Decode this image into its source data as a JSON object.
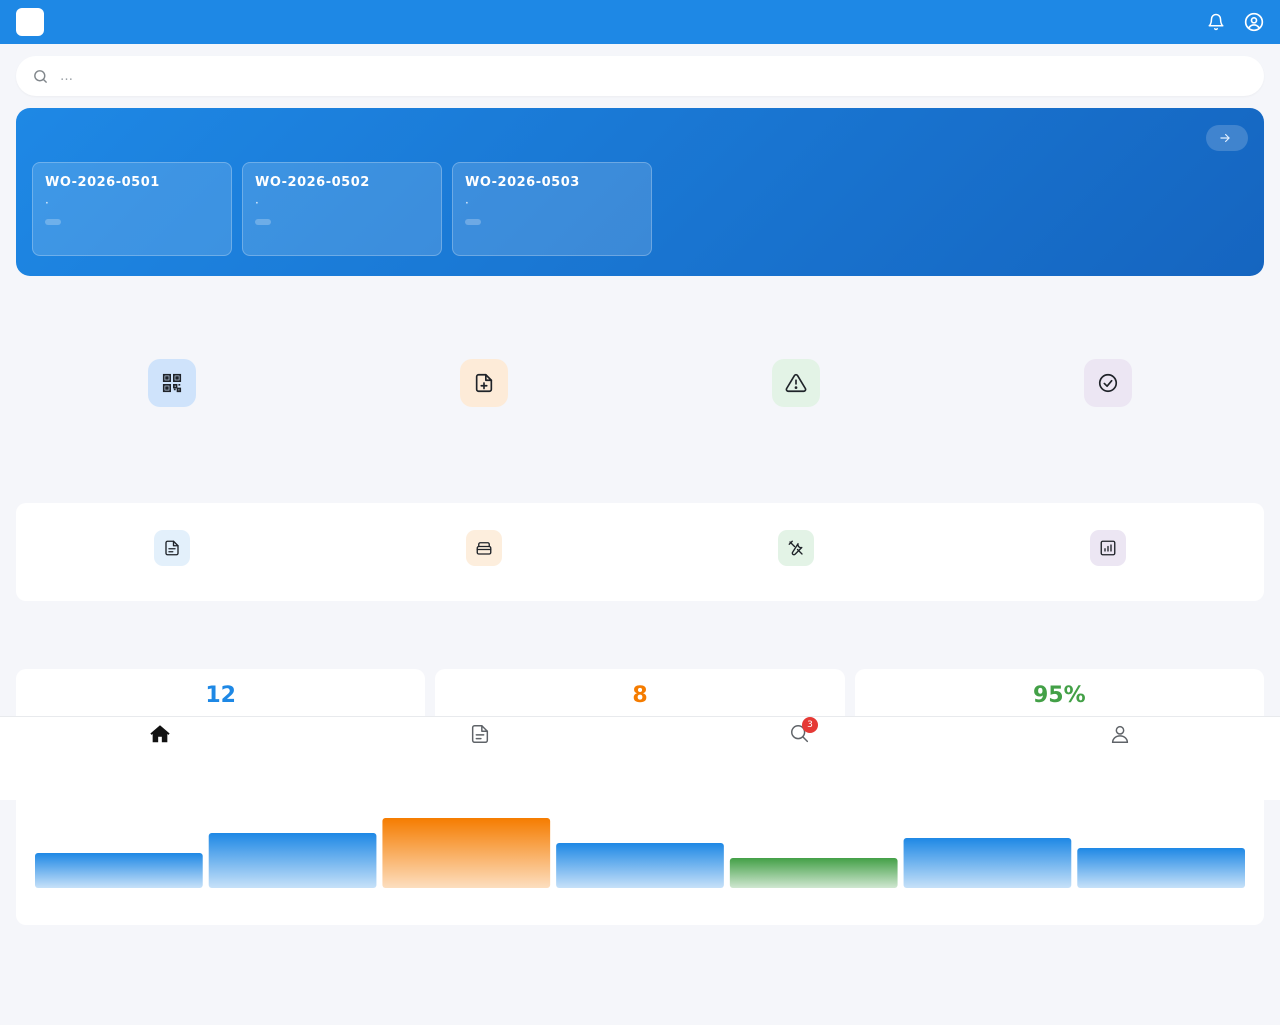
{
  "header": {
    "logo_glyph": "",
    "title": "",
    "icons": [
      "bell-icon",
      "user-circle-icon"
    ]
  },
  "search": {
    "placeholder": "…"
  },
  "banner": {
    "title": "",
    "more_label": "",
    "work_orders": [
      {
        "id": "WO-2026-0501",
        "desc": " · ",
        "status": ""
      },
      {
        "id": "WO-2026-0502",
        "desc": " · ",
        "status": ""
      },
      {
        "id": "WO-2026-0503",
        "desc": " · ",
        "status": ""
      }
    ]
  },
  "quick_section": {
    "title": "",
    "items": [
      {
        "label": "",
        "icon": "qr-code-icon",
        "bg": "#cfe3fb"
      },
      {
        "label": "",
        "icon": "file-plus-icon",
        "bg": "#fdebd8"
      },
      {
        "label": "",
        "icon": "alert-triangle-icon",
        "bg": "#e3f3e6"
      },
      {
        "label": "",
        "icon": "check-circle-icon",
        "bg": "#ece6f3"
      }
    ]
  },
  "func_section": {
    "title": "",
    "items": [
      {
        "label": "",
        "icon": "document-icon",
        "bg": "#e3f0fb"
      },
      {
        "label": "",
        "icon": "archive-icon",
        "bg": "#fdeedd"
      },
      {
        "label": "",
        "icon": "tools-icon",
        "bg": "#e3f3e6"
      },
      {
        "label": "",
        "icon": "bar-chart-icon",
        "bg": "#ece6f3"
      }
    ]
  },
  "stats_section": {
    "title": "",
    "stats": [
      {
        "value": "12",
        "color": "#1e88e5"
      },
      {
        "value": "8",
        "color": "#f57c00"
      },
      {
        "value": "95%",
        "color": "#43a047"
      }
    ]
  },
  "chart_data": {
    "type": "bar",
    "categories": [
      "",
      "",
      "",
      "",
      "",
      "",
      ""
    ],
    "values": [
      28,
      44,
      56,
      36,
      24,
      40,
      32
    ],
    "colors": [
      "#1e88e5",
      "#1e88e5",
      "#f57c00",
      "#1e88e5",
      "#43a047",
      "#1e88e5",
      "#1e88e5"
    ],
    "title": "",
    "xlabel": "",
    "ylabel": ""
  },
  "bottom_nav": {
    "items": [
      {
        "label": "",
        "icon": "home-icon",
        "active": true
      },
      {
        "label": "",
        "icon": "document-icon",
        "active": false
      },
      {
        "label": "",
        "icon": "search-icon",
        "active": false,
        "badge": "3"
      },
      {
        "label": "",
        "icon": "user-icon",
        "active": false
      }
    ]
  }
}
